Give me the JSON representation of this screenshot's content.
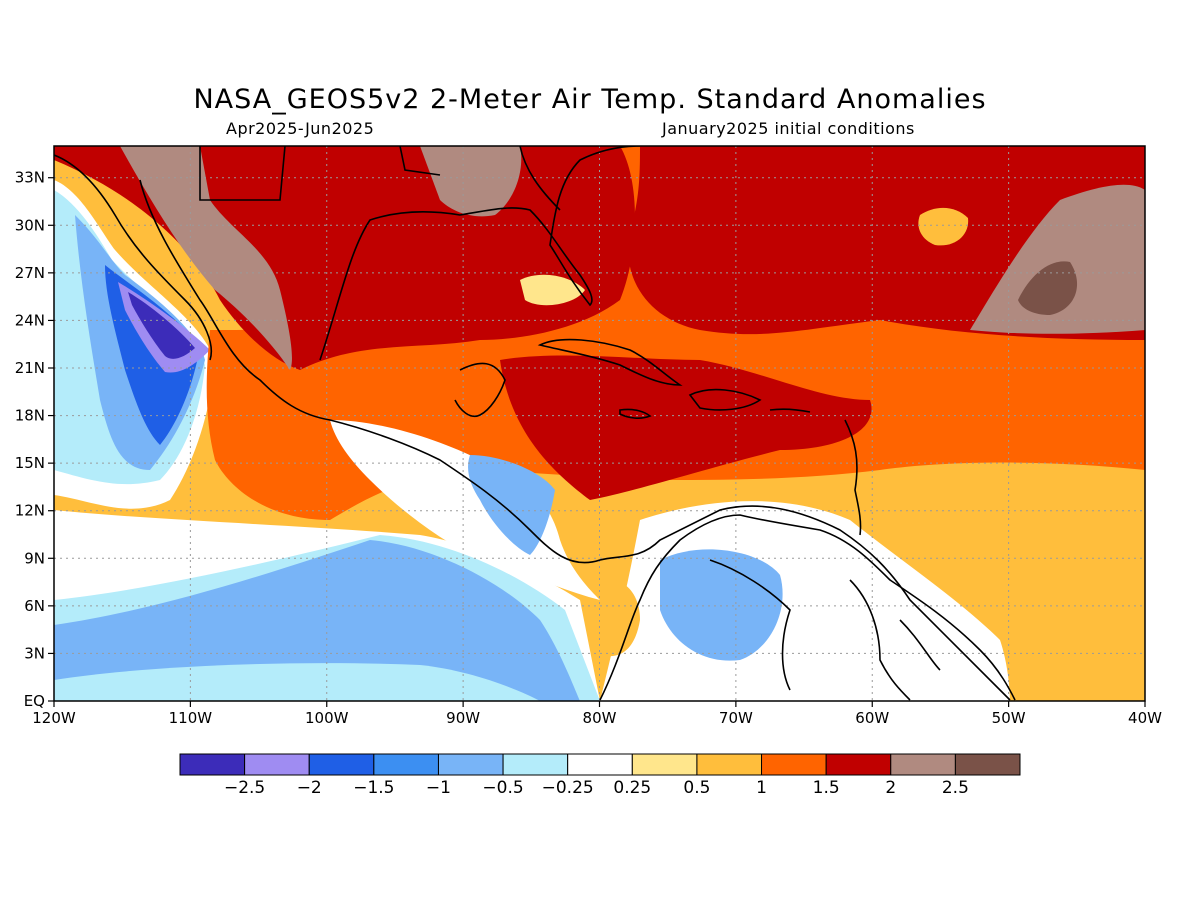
{
  "header": {
    "title": "NASA_GEOS5v2 2-Meter Air Temp. Standard Anomalies",
    "period": "Apr2025-Jun2025",
    "init": "January2025 initial conditions"
  },
  "map": {
    "lon_range": [
      -120,
      -40
    ],
    "lat_range": [
      0,
      35
    ],
    "x_ticks": [
      "120W",
      "110W",
      "100W",
      "90W",
      "80W",
      "70W",
      "60W",
      "50W",
      "40W"
    ],
    "x_tick_values": [
      -120,
      -110,
      -100,
      -90,
      -80,
      -70,
      -60,
      -50,
      -40
    ],
    "y_ticks": [
      "EQ",
      "3N",
      "6N",
      "9N",
      "12N",
      "15N",
      "18N",
      "21N",
      "24N",
      "27N",
      "30N",
      "33N"
    ],
    "y_tick_values": [
      0,
      3,
      6,
      9,
      12,
      15,
      18,
      21,
      24,
      27,
      30,
      33
    ],
    "grid": true
  },
  "colorbar": {
    "colors": [
      "#3c2cb9",
      "#9f8cf2",
      "#1f5fe6",
      "#3c8ff2",
      "#78b4f7",
      "#b4ecfa",
      "#ffffff",
      "#ffe68c",
      "#ffbe3c",
      "#ff6400",
      "#c00000",
      "#b08a80",
      "#7a5248"
    ],
    "labels": [
      "-2.5",
      "-2",
      "-1.5",
      "-1",
      "-0.5",
      "-0.25",
      "0.25",
      "0.5",
      "1",
      "1.5",
      "2",
      "2.5"
    ]
  }
}
